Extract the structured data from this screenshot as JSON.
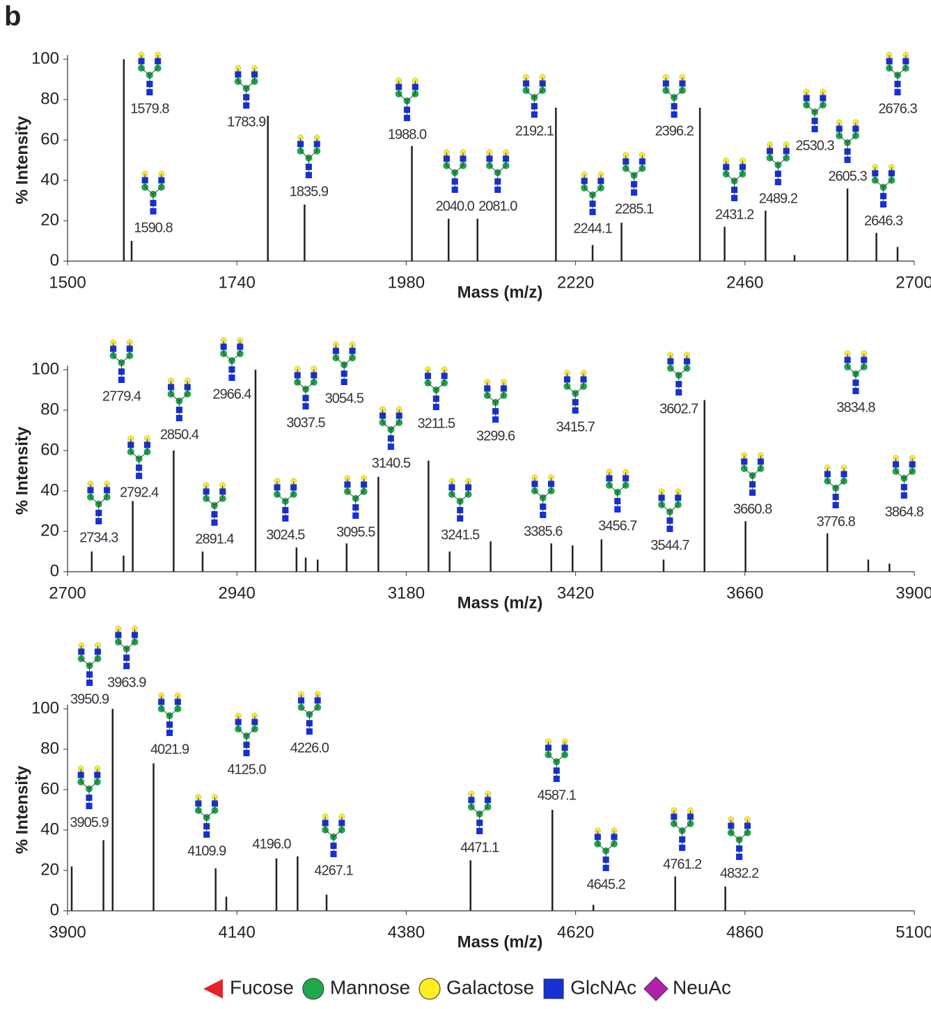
{
  "panel_label": "b",
  "legend": [
    {
      "name": "Fucose",
      "color": "#e8202a",
      "shape": "triangle"
    },
    {
      "name": "Mannose",
      "color": "#1fa84a",
      "shape": "circle"
    },
    {
      "name": "Galactose",
      "color": "#ffee22",
      "shape": "circle"
    },
    {
      "name": "GlcNAc",
      "color": "#1530d8",
      "shape": "square"
    },
    {
      "name": "NeuAc",
      "color": "#b21fb0",
      "shape": "diamond"
    }
  ],
  "chart_data": [
    {
      "type": "stem",
      "x_label": "Mass (m/z)",
      "y_label": "% Intensity",
      "color": "#222222",
      "xlim": [
        1500,
        2700
      ],
      "xticks": [
        1500,
        1740,
        1980,
        2220,
        2460,
        2700
      ],
      "ylim": [
        0,
        100
      ],
      "yticks": [
        0,
        20,
        40,
        60,
        80,
        100
      ],
      "x": [
        1579.8,
        1590.8,
        1783.9,
        1835.9,
        1988.0,
        2040.0,
        2081.0,
        2192.1,
        2244.1,
        2285.1,
        2396.2,
        2431.2,
        2489.2,
        2530.3,
        2605.3,
        2646.3,
        2676.3
      ],
      "labels": [
        "1579.8",
        "1590.8",
        "1783.9",
        "1835.9",
        "1988.0",
        "2040.0",
        "2081.0",
        "2192.1",
        "2244.1",
        "2285.1",
        "2396.2",
        "2431.2",
        "2489.2",
        "2530.3",
        "2605.3",
        "2646.3",
        "2676.3"
      ],
      "values": [
        100,
        10,
        72,
        28,
        57,
        21,
        21,
        76,
        8,
        19,
        76,
        17,
        25,
        3,
        36,
        14,
        7
      ]
    },
    {
      "type": "stem",
      "x_label": "Mass (m/z)",
      "y_label": "% Intensity",
      "color": "#222222",
      "xlim": [
        2700,
        3900
      ],
      "xticks": [
        2700,
        2940,
        3180,
        3420,
        3660,
        3900
      ],
      "ylim": [
        0,
        100
      ],
      "yticks": [
        0,
        20,
        40,
        60,
        80,
        100
      ],
      "x": [
        2734.3,
        2779.4,
        2792.4,
        2850.4,
        2891.4,
        2966.4,
        3024.5,
        3037.5,
        3054.5,
        3095.5,
        3140.5,
        3211.5,
        3241.5,
        3299.6,
        3385.6,
        3415.7,
        3456.7,
        3544.7,
        3602.7,
        3660.8,
        3776.8,
        3834.8,
        3864.8
      ],
      "labels": [
        "2734.3",
        "2779.4",
        "2792.4",
        "2850.4",
        "2891.4",
        "2966.4",
        "3024.5",
        "3037.5",
        "3054.5",
        "3095.5",
        "3140.5",
        "3211.5",
        "3241.5",
        "3299.6",
        "3385.6",
        "3415.7",
        "3456.7",
        "3544.7",
        "3602.7",
        "3660.8",
        "3776.8",
        "3834.8",
        "3864.8"
      ],
      "values": [
        10,
        8,
        35,
        60,
        10,
        100,
        12,
        7,
        6,
        14,
        47,
        55,
        10,
        15,
        14,
        13,
        16,
        6,
        85,
        25,
        19,
        6,
        4
      ]
    },
    {
      "type": "stem",
      "x_label": "Mass (m/z)",
      "y_label": "% Intensity",
      "color": "#222222",
      "xlim": [
        3900,
        5100
      ],
      "xticks": [
        3900,
        4140,
        4380,
        4620,
        4860,
        5100
      ],
      "ylim": [
        0,
        100
      ],
      "yticks": [
        0,
        20,
        40,
        60,
        80,
        100
      ],
      "x": [
        3905.9,
        3950.9,
        3963.9,
        4021.9,
        4109.9,
        4125.0,
        4196.0,
        4226.0,
        4267.1,
        4471.1,
        4587.1,
        4645.2,
        4761.2,
        4832.2
      ],
      "labels": [
        "3905.9",
        "3950.9",
        "3963.9",
        "4021.9",
        "4109.9",
        "4125.0",
        "4196.0",
        "4226.0",
        "4267.1",
        "4471.1",
        "4587.1",
        "4645.2",
        "4761.2",
        "4832.2"
      ],
      "values": [
        22,
        35,
        100,
        73,
        21,
        7,
        26,
        27,
        8,
        25,
        50,
        3,
        17,
        12
      ]
    }
  ]
}
